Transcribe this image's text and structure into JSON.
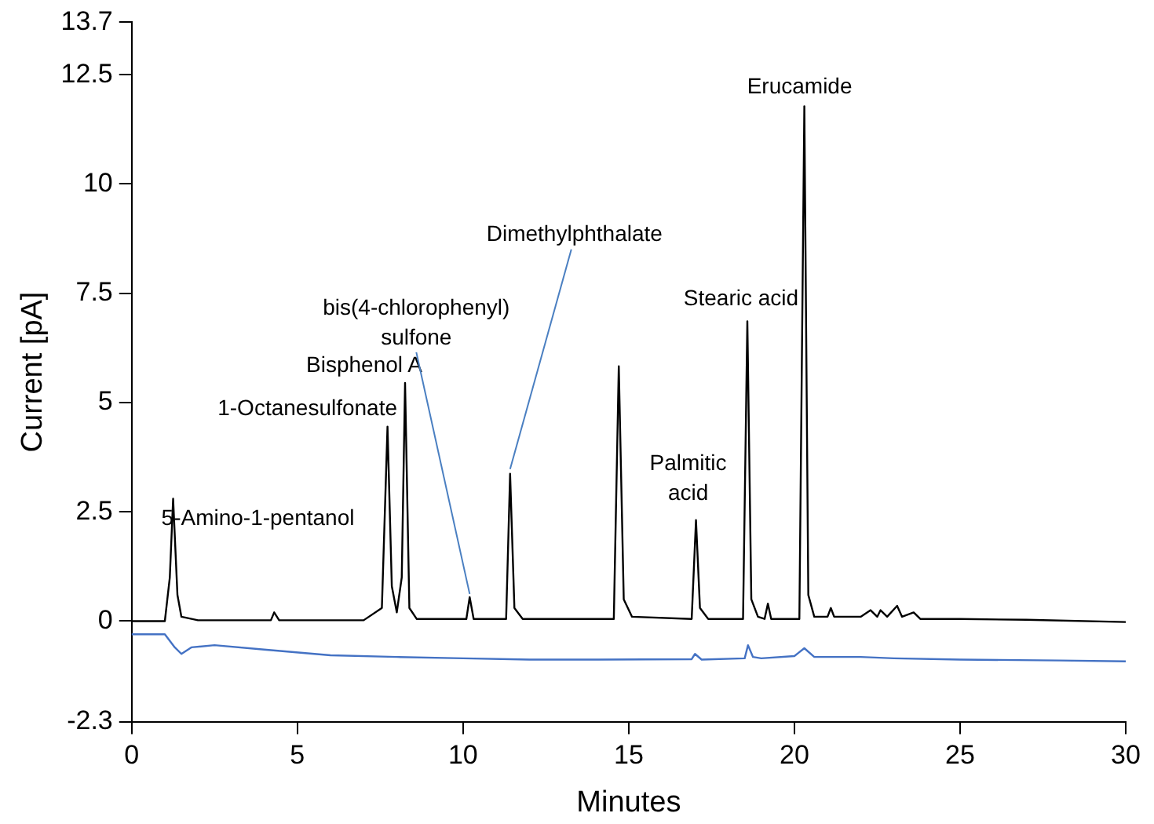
{
  "chart_data": {
    "type": "line",
    "xlabel": "Minutes",
    "ylabel": "Current [pA]",
    "xlim": [
      0,
      30
    ],
    "xticks": [
      0,
      5,
      10,
      15,
      20,
      25,
      30
    ],
    "ylim": [
      -2.3,
      13.7
    ],
    "yticks": [
      -2.3,
      0,
      2.5,
      5,
      7.5,
      10,
      12.5,
      13.7
    ],
    "marker": "none",
    "line_style": "solid",
    "legend": false,
    "series": [
      {
        "color": "#000000",
        "x": [
          0,
          1.0,
          1.15,
          1.25,
          1.38,
          1.5,
          2.0,
          4.2,
          4.3,
          4.45,
          7.0,
          7.55,
          7.72,
          7.85,
          8.0,
          8.15,
          8.25,
          8.38,
          8.6,
          10.1,
          10.2,
          10.32,
          11.3,
          11.42,
          11.55,
          11.8,
          14.55,
          14.7,
          14.85,
          15.1,
          16.9,
          17.03,
          17.15,
          17.4,
          18.45,
          18.58,
          18.7,
          18.9,
          19.1,
          19.2,
          19.3,
          20.15,
          20.3,
          20.42,
          20.6,
          21.0,
          21.1,
          21.2,
          22.0,
          22.3,
          22.5,
          22.6,
          22.8,
          23.1,
          23.25,
          23.6,
          23.8,
          25,
          27,
          30
        ],
        "values": [
          0,
          0,
          1.0,
          2.8,
          0.6,
          0.1,
          0.02,
          0.02,
          0.2,
          0.02,
          0.02,
          0.3,
          4.45,
          0.8,
          0.2,
          1.0,
          5.45,
          0.3,
          0.05,
          0.05,
          0.55,
          0.05,
          0.05,
          3.37,
          0.3,
          0.05,
          0.05,
          5.83,
          0.5,
          0.1,
          0.05,
          2.31,
          0.3,
          0.05,
          0.05,
          6.86,
          0.5,
          0.1,
          0.05,
          0.4,
          0.05,
          0.05,
          11.78,
          0.6,
          0.1,
          0.1,
          0.3,
          0.1,
          0.1,
          0.25,
          0.1,
          0.25,
          0.1,
          0.35,
          0.1,
          0.2,
          0.05,
          0.05,
          0.03,
          -0.02
        ]
      },
      {
        "color": "#4472c4",
        "x": [
          0,
          1.0,
          1.3,
          1.5,
          1.8,
          2.5,
          4,
          6,
          8,
          10,
          12,
          14,
          16.9,
          17.0,
          17.2,
          18.5,
          18.6,
          18.75,
          19,
          20,
          20.3,
          20.6,
          22,
          23,
          25,
          28,
          30
        ],
        "values": [
          -0.3,
          -0.3,
          -0.6,
          -0.75,
          -0.6,
          -0.55,
          -0.65,
          -0.78,
          -0.82,
          -0.85,
          -0.88,
          -0.88,
          -0.87,
          -0.75,
          -0.88,
          -0.85,
          -0.55,
          -0.82,
          -0.85,
          -0.8,
          -0.62,
          -0.82,
          -0.82,
          -0.85,
          -0.88,
          -0.9,
          -0.92
        ]
      }
    ],
    "annotations": [
      {
        "text": "5-Amino-1-pentanol",
        "x": 1.25,
        "y": 2.8
      },
      {
        "text": "1-Octanesulfonate",
        "x": 7.72,
        "y": 4.45
      },
      {
        "text": "Bisphenol A",
        "x": 8.25,
        "y": 5.45
      },
      {
        "text": "bis(4-chlorophenyl) sulfone",
        "x": 10.2,
        "y": 0.55
      },
      {
        "text": "Dimethylphthalate",
        "x": 11.42,
        "y": 3.37
      },
      {
        "text": "Palmitic acid",
        "x": 17.03,
        "y": 2.31
      },
      {
        "text": "Stearic acid",
        "x": 18.58,
        "y": 6.86
      },
      {
        "text": "Erucamide",
        "x": 20.3,
        "y": 11.78
      }
    ]
  }
}
